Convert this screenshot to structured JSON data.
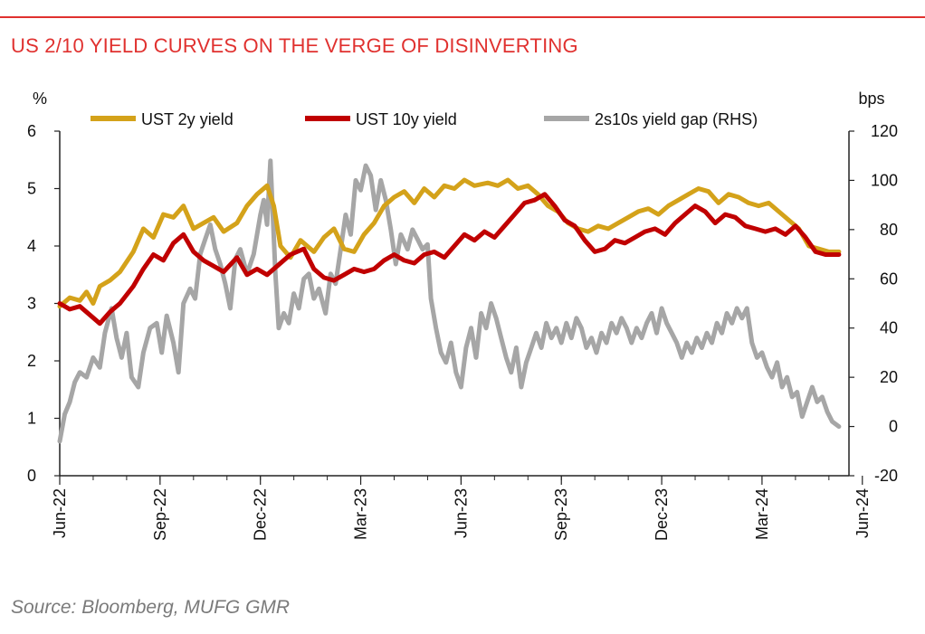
{
  "header": {
    "title": "US 2/10 YIELD CURVES ON THE VERGE OF DISINVERTING"
  },
  "footer": {
    "source": "Source: Bloomberg, MUFG GMR"
  },
  "chart_data": {
    "type": "line",
    "ylabel_left": "%",
    "ylabel_right": "bps",
    "ylim_left": [
      0,
      6
    ],
    "ylim_right": [
      -20,
      120
    ],
    "yticks_left": [
      "0",
      "1",
      "2",
      "3",
      "4",
      "5",
      "6"
    ],
    "yticks_right": [
      "-20",
      "0",
      "20",
      "40",
      "60",
      "80",
      "100",
      "120"
    ],
    "xticks": [
      "Jun-22",
      "Sep-22",
      "Dec-22",
      "Mar-23",
      "Jun-23",
      "Sep-23",
      "Dec-23",
      "Mar-24",
      "Jun-24"
    ],
    "legend_placement": "top",
    "colors": {
      "ust2y": "#d4a21a",
      "ust10y": "#c00000",
      "gap": "#a6a6a6"
    },
    "series": [
      {
        "name": "UST 2y yield",
        "axis": "left",
        "points": [
          [
            0,
            2.95
          ],
          [
            0.3,
            3.1
          ],
          [
            0.6,
            3.05
          ],
          [
            0.8,
            3.2
          ],
          [
            1.0,
            3.0
          ],
          [
            1.2,
            3.3
          ],
          [
            1.5,
            3.4
          ],
          [
            1.8,
            3.55
          ],
          [
            2.2,
            3.9
          ],
          [
            2.5,
            4.3
          ],
          [
            2.8,
            4.15
          ],
          [
            3.1,
            4.55
          ],
          [
            3.4,
            4.5
          ],
          [
            3.7,
            4.7
          ],
          [
            4.0,
            4.3
          ],
          [
            4.3,
            4.4
          ],
          [
            4.6,
            4.5
          ],
          [
            4.9,
            4.25
          ],
          [
            5.3,
            4.4
          ],
          [
            5.6,
            4.7
          ],
          [
            5.9,
            4.9
          ],
          [
            6.2,
            5.05
          ],
          [
            6.4,
            4.7
          ],
          [
            6.6,
            4.0
          ],
          [
            6.9,
            3.8
          ],
          [
            7.2,
            4.1
          ],
          [
            7.6,
            3.9
          ],
          [
            7.9,
            4.15
          ],
          [
            8.2,
            4.3
          ],
          [
            8.5,
            3.95
          ],
          [
            8.8,
            3.9
          ],
          [
            9.1,
            4.2
          ],
          [
            9.4,
            4.4
          ],
          [
            9.7,
            4.7
          ],
          [
            10.0,
            4.85
          ],
          [
            10.3,
            4.95
          ],
          [
            10.6,
            4.75
          ],
          [
            10.9,
            5.0
          ],
          [
            11.2,
            4.85
          ],
          [
            11.5,
            5.05
          ],
          [
            11.8,
            5.0
          ],
          [
            12.1,
            5.15
          ],
          [
            12.4,
            5.05
          ],
          [
            12.8,
            5.1
          ],
          [
            13.1,
            5.05
          ],
          [
            13.4,
            5.15
          ],
          [
            13.7,
            5.0
          ],
          [
            14.0,
            5.05
          ],
          [
            14.3,
            4.9
          ],
          [
            14.6,
            4.7
          ],
          [
            14.9,
            4.6
          ],
          [
            15.2,
            4.4
          ],
          [
            15.5,
            4.3
          ],
          [
            15.8,
            4.25
          ],
          [
            16.1,
            4.35
          ],
          [
            16.4,
            4.3
          ],
          [
            16.7,
            4.4
          ],
          [
            17.0,
            4.5
          ],
          [
            17.3,
            4.6
          ],
          [
            17.6,
            4.65
          ],
          [
            17.9,
            4.55
          ],
          [
            18.2,
            4.7
          ],
          [
            18.5,
            4.8
          ],
          [
            18.8,
            4.9
          ],
          [
            19.1,
            5.0
          ],
          [
            19.4,
            4.95
          ],
          [
            19.7,
            4.75
          ],
          [
            20.0,
            4.9
          ],
          [
            20.3,
            4.85
          ],
          [
            20.6,
            4.75
          ],
          [
            20.9,
            4.7
          ],
          [
            21.2,
            4.75
          ],
          [
            21.5,
            4.6
          ],
          [
            21.8,
            4.45
          ],
          [
            22.1,
            4.3
          ],
          [
            22.4,
            4.0
          ],
          [
            22.7,
            3.95
          ],
          [
            23.0,
            3.9
          ],
          [
            23.3,
            3.9
          ]
        ]
      },
      {
        "name": "UST 10y yield",
        "axis": "left",
        "points": [
          [
            0,
            3.0
          ],
          [
            0.3,
            2.9
          ],
          [
            0.6,
            2.95
          ],
          [
            0.9,
            2.8
          ],
          [
            1.2,
            2.65
          ],
          [
            1.5,
            2.85
          ],
          [
            1.8,
            3.0
          ],
          [
            2.2,
            3.3
          ],
          [
            2.5,
            3.6
          ],
          [
            2.8,
            3.85
          ],
          [
            3.1,
            3.75
          ],
          [
            3.4,
            4.05
          ],
          [
            3.7,
            4.2
          ],
          [
            4.0,
            3.9
          ],
          [
            4.3,
            3.75
          ],
          [
            4.6,
            3.65
          ],
          [
            4.9,
            3.55
          ],
          [
            5.3,
            3.8
          ],
          [
            5.6,
            3.5
          ],
          [
            5.9,
            3.6
          ],
          [
            6.2,
            3.5
          ],
          [
            6.5,
            3.65
          ],
          [
            6.9,
            3.85
          ],
          [
            7.3,
            3.95
          ],
          [
            7.6,
            3.6
          ],
          [
            7.9,
            3.45
          ],
          [
            8.2,
            3.4
          ],
          [
            8.5,
            3.5
          ],
          [
            8.8,
            3.6
          ],
          [
            9.1,
            3.55
          ],
          [
            9.4,
            3.6
          ],
          [
            9.7,
            3.75
          ],
          [
            10.0,
            3.85
          ],
          [
            10.3,
            3.75
          ],
          [
            10.6,
            3.7
          ],
          [
            10.9,
            3.85
          ],
          [
            11.2,
            3.9
          ],
          [
            11.5,
            3.8
          ],
          [
            11.8,
            4.0
          ],
          [
            12.1,
            4.2
          ],
          [
            12.4,
            4.1
          ],
          [
            12.7,
            4.25
          ],
          [
            13.0,
            4.15
          ],
          [
            13.3,
            4.35
          ],
          [
            13.6,
            4.55
          ],
          [
            13.9,
            4.75
          ],
          [
            14.2,
            4.8
          ],
          [
            14.5,
            4.9
          ],
          [
            14.8,
            4.7
          ],
          [
            15.1,
            4.45
          ],
          [
            15.4,
            4.35
          ],
          [
            15.7,
            4.1
          ],
          [
            16.0,
            3.9
          ],
          [
            16.3,
            3.95
          ],
          [
            16.6,
            4.1
          ],
          [
            16.9,
            4.05
          ],
          [
            17.2,
            4.15
          ],
          [
            17.5,
            4.25
          ],
          [
            17.8,
            4.3
          ],
          [
            18.1,
            4.2
          ],
          [
            18.4,
            4.4
          ],
          [
            18.7,
            4.55
          ],
          [
            19.0,
            4.7
          ],
          [
            19.3,
            4.6
          ],
          [
            19.6,
            4.4
          ],
          [
            19.9,
            4.55
          ],
          [
            20.2,
            4.5
          ],
          [
            20.5,
            4.35
          ],
          [
            20.8,
            4.3
          ],
          [
            21.1,
            4.25
          ],
          [
            21.4,
            4.3
          ],
          [
            21.7,
            4.2
          ],
          [
            22.0,
            4.35
          ],
          [
            22.3,
            4.15
          ],
          [
            22.6,
            3.9
          ],
          [
            22.9,
            3.85
          ],
          [
            23.3,
            3.85
          ]
        ]
      },
      {
        "name": "2s10s yield gap (RHS)",
        "axis": "right",
        "points": [
          [
            0,
            -6
          ],
          [
            0.15,
            5
          ],
          [
            0.3,
            10
          ],
          [
            0.45,
            18
          ],
          [
            0.6,
            22
          ],
          [
            0.8,
            20
          ],
          [
            1.0,
            28
          ],
          [
            1.2,
            24
          ],
          [
            1.35,
            38
          ],
          [
            1.55,
            48
          ],
          [
            1.7,
            36
          ],
          [
            1.85,
            28
          ],
          [
            2.0,
            38
          ],
          [
            2.15,
            20
          ],
          [
            2.35,
            16
          ],
          [
            2.5,
            30
          ],
          [
            2.7,
            40
          ],
          [
            2.9,
            42
          ],
          [
            3.05,
            30
          ],
          [
            3.2,
            45
          ],
          [
            3.4,
            34
          ],
          [
            3.55,
            22
          ],
          [
            3.7,
            50
          ],
          [
            3.9,
            56
          ],
          [
            4.05,
            52
          ],
          [
            4.2,
            70
          ],
          [
            4.35,
            76
          ],
          [
            4.5,
            82
          ],
          [
            4.65,
            72
          ],
          [
            4.8,
            66
          ],
          [
            4.95,
            58
          ],
          [
            5.1,
            48
          ],
          [
            5.25,
            68
          ],
          [
            5.4,
            72
          ],
          [
            5.6,
            62
          ],
          [
            5.8,
            70
          ],
          [
            6.0,
            86
          ],
          [
            6.1,
            92
          ],
          [
            6.2,
            82
          ],
          [
            6.3,
            108
          ],
          [
            6.45,
            62
          ],
          [
            6.55,
            40
          ],
          [
            6.7,
            46
          ],
          [
            6.85,
            42
          ],
          [
            7.0,
            54
          ],
          [
            7.15,
            48
          ],
          [
            7.3,
            60
          ],
          [
            7.45,
            62
          ],
          [
            7.6,
            52
          ],
          [
            7.75,
            56
          ],
          [
            7.95,
            46
          ],
          [
            8.1,
            62
          ],
          [
            8.25,
            58
          ],
          [
            8.4,
            72
          ],
          [
            8.55,
            86
          ],
          [
            8.7,
            78
          ],
          [
            8.85,
            100
          ],
          [
            9.0,
            96
          ],
          [
            9.15,
            106
          ],
          [
            9.3,
            102
          ],
          [
            9.45,
            88
          ],
          [
            9.6,
            100
          ],
          [
            9.75,
            92
          ],
          [
            9.9,
            80
          ],
          [
            10.05,
            66
          ],
          [
            10.2,
            78
          ],
          [
            10.4,
            72
          ],
          [
            10.55,
            80
          ],
          [
            10.7,
            76
          ],
          [
            10.85,
            72
          ],
          [
            11.0,
            74
          ],
          [
            11.1,
            52
          ],
          [
            11.25,
            40
          ],
          [
            11.4,
            30
          ],
          [
            11.55,
            26
          ],
          [
            11.7,
            34
          ],
          [
            11.85,
            22
          ],
          [
            12.0,
            16
          ],
          [
            12.15,
            32
          ],
          [
            12.3,
            40
          ],
          [
            12.45,
            28
          ],
          [
            12.6,
            46
          ],
          [
            12.75,
            40
          ],
          [
            12.9,
            50
          ],
          [
            13.05,
            44
          ],
          [
            13.2,
            36
          ],
          [
            13.35,
            28
          ],
          [
            13.5,
            22
          ],
          [
            13.65,
            32
          ],
          [
            13.8,
            16
          ],
          [
            13.95,
            26
          ],
          [
            14.1,
            32
          ],
          [
            14.25,
            38
          ],
          [
            14.4,
            32
          ],
          [
            14.55,
            42
          ],
          [
            14.7,
            36
          ],
          [
            14.85,
            40
          ],
          [
            15.0,
            34
          ],
          [
            15.15,
            42
          ],
          [
            15.3,
            36
          ],
          [
            15.45,
            44
          ],
          [
            15.6,
            40
          ],
          [
            15.75,
            32
          ],
          [
            15.9,
            36
          ],
          [
            16.05,
            30
          ],
          [
            16.2,
            38
          ],
          [
            16.35,
            34
          ],
          [
            16.5,
            42
          ],
          [
            16.65,
            38
          ],
          [
            16.8,
            44
          ],
          [
            16.95,
            40
          ],
          [
            17.1,
            34
          ],
          [
            17.25,
            40
          ],
          [
            17.4,
            36
          ],
          [
            17.55,
            42
          ],
          [
            17.7,
            46
          ],
          [
            17.85,
            38
          ],
          [
            18.0,
            48
          ],
          [
            18.15,
            42
          ],
          [
            18.3,
            38
          ],
          [
            18.45,
            34
          ],
          [
            18.6,
            28
          ],
          [
            18.75,
            34
          ],
          [
            18.9,
            30
          ],
          [
            19.05,
            36
          ],
          [
            19.2,
            32
          ],
          [
            19.35,
            38
          ],
          [
            19.5,
            34
          ],
          [
            19.65,
            42
          ],
          [
            19.8,
            38
          ],
          [
            19.95,
            46
          ],
          [
            20.1,
            42
          ],
          [
            20.25,
            48
          ],
          [
            20.4,
            44
          ],
          [
            20.55,
            48
          ],
          [
            20.7,
            34
          ],
          [
            20.85,
            28
          ],
          [
            21.0,
            30
          ],
          [
            21.15,
            24
          ],
          [
            21.3,
            20
          ],
          [
            21.45,
            26
          ],
          [
            21.6,
            16
          ],
          [
            21.75,
            20
          ],
          [
            21.9,
            12
          ],
          [
            22.05,
            14
          ],
          [
            22.2,
            4
          ],
          [
            22.35,
            10
          ],
          [
            22.5,
            16
          ],
          [
            22.65,
            10
          ],
          [
            22.8,
            12
          ],
          [
            22.95,
            6
          ],
          [
            23.1,
            2
          ],
          [
            23.3,
            0
          ]
        ]
      }
    ]
  }
}
